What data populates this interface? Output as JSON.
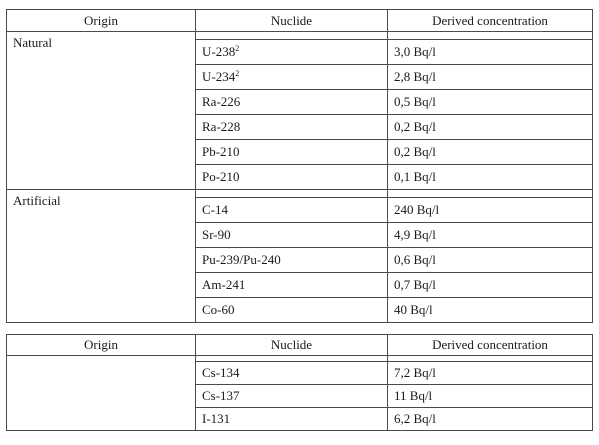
{
  "table1": {
    "headers": {
      "origin": "Origin",
      "nuclide": "Nuclide",
      "concentration": "Derived concentration"
    },
    "groups": [
      {
        "origin": "Natural",
        "rows": [
          {
            "nuclide": "U-238",
            "sup": "2",
            "conc": "3,0 Bq/l"
          },
          {
            "nuclide": "U-234",
            "sup": "2",
            "conc": "2,8 Bq/l"
          },
          {
            "nuclide": "Ra-226",
            "conc": "0,5 Bq/l"
          },
          {
            "nuclide": "Ra-228",
            "conc": "0,2 Bq/l"
          },
          {
            "nuclide": "Pb-210",
            "conc": "0,2 Bq/l"
          },
          {
            "nuclide": "Po-210",
            "conc": "0,1 Bq/l"
          }
        ]
      },
      {
        "origin": "Artificial",
        "rows": [
          {
            "nuclide": "C-14",
            "conc": "240 Bq/l"
          },
          {
            "nuclide": "Sr-90",
            "conc": "4,9 Bq/l"
          },
          {
            "nuclide": "Pu-239/Pu-240",
            "conc": "0,6 Bq/l"
          },
          {
            "nuclide": "Am-241",
            "conc": "0,7 Bq/l"
          },
          {
            "nuclide": "Co-60",
            "conc": "40 Bq/l"
          }
        ]
      }
    ]
  },
  "table2": {
    "headers": {
      "origin": "Origin",
      "nuclide": "Nuclide",
      "concentration": "Derived concentration"
    },
    "rows": [
      {
        "nuclide": "Cs-134",
        "conc": "7,2 Bq/l"
      },
      {
        "nuclide": "Cs-137",
        "conc": "11 Bq/l"
      },
      {
        "nuclide": "I-131",
        "conc": "6,2 Bq/l"
      }
    ]
  }
}
